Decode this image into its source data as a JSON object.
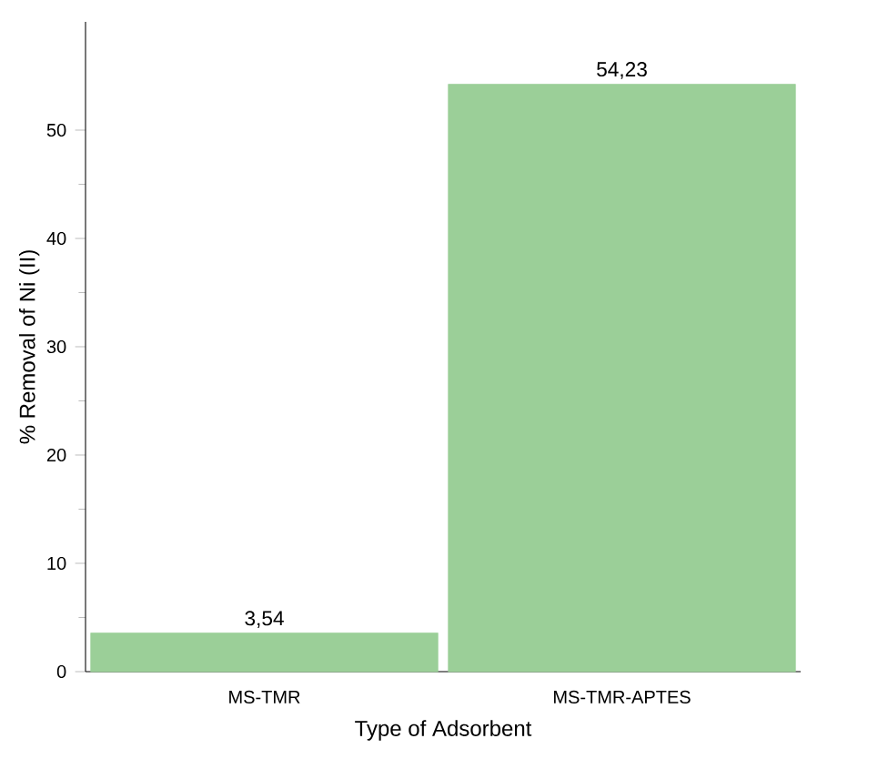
{
  "chart_data": {
    "type": "bar",
    "xlabel": "Type of Adsorbent",
    "ylabel": "% Removal of Ni (II)",
    "categories": [
      "MS-TMR",
      "MS-TMR-APTES"
    ],
    "values": [
      3.54,
      54.23
    ],
    "value_labels": [
      "3,54",
      "54,23"
    ],
    "color": "#9bcf98",
    "ylim": [
      0,
      60
    ],
    "yticks": [
      0,
      10,
      20,
      30,
      40,
      50
    ],
    "grid": false
  }
}
